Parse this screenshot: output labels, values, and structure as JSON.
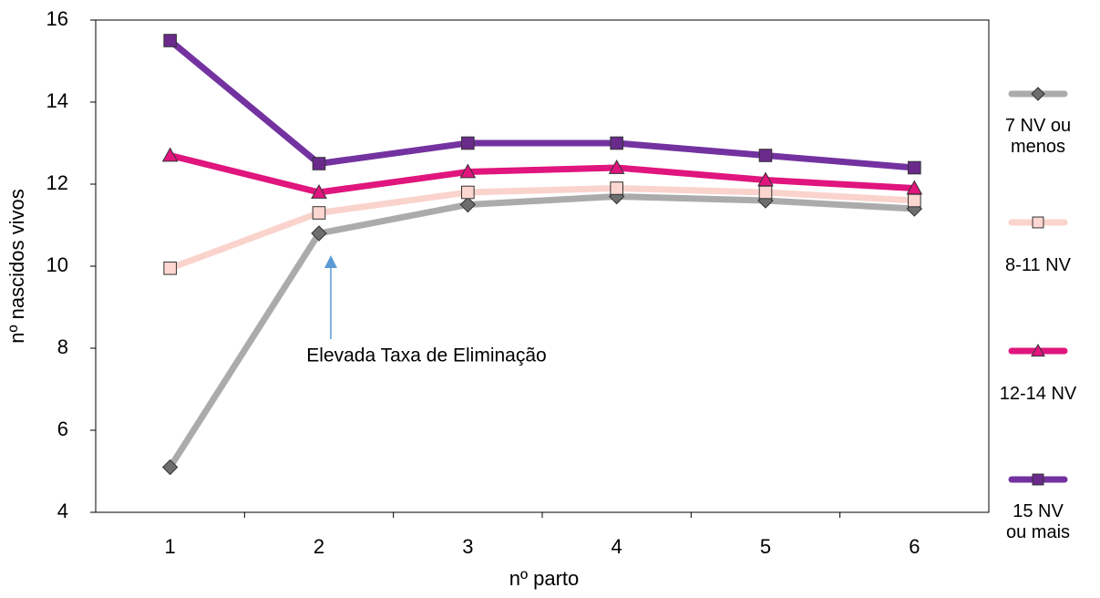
{
  "chart_data": {
    "type": "line",
    "categories": [
      "1",
      "2",
      "3",
      "4",
      "5",
      "6"
    ],
    "x_label": "nº parto",
    "y_label": "nº nascidos vivos",
    "ylim": [
      4,
      16
    ],
    "yticks": [
      4,
      6,
      8,
      10,
      12,
      14,
      16
    ],
    "annotation": "Elevada Taxa de Eliminação",
    "annotation_color": "#2f8fe0",
    "legend": "right",
    "series": [
      {
        "name": "7 NV ou\nmenos",
        "color": "#ababab",
        "marker": "diamond",
        "marker_color": "#6e6e6e",
        "values": [
          5.1,
          10.8,
          11.5,
          11.7,
          11.6,
          11.4
        ]
      },
      {
        "name": "8-11 NV",
        "color": "#fad3cc",
        "marker": "square",
        "marker_color": "#fcd6d0",
        "values": [
          9.95,
          11.3,
          11.8,
          11.9,
          11.8,
          11.6
        ]
      },
      {
        "name": "12-14 NV",
        "color": "#e0157d",
        "marker": "triangle",
        "marker_color": "#e0157d",
        "values": [
          12.7,
          11.8,
          12.3,
          12.4,
          12.1,
          11.9
        ]
      },
      {
        "name": "15 NV\nou mais",
        "color": "#7332a0",
        "marker": "square",
        "marker_color": "#6a2a8c",
        "values": [
          15.5,
          12.5,
          13.0,
          13.0,
          12.7,
          12.4
        ]
      }
    ]
  }
}
